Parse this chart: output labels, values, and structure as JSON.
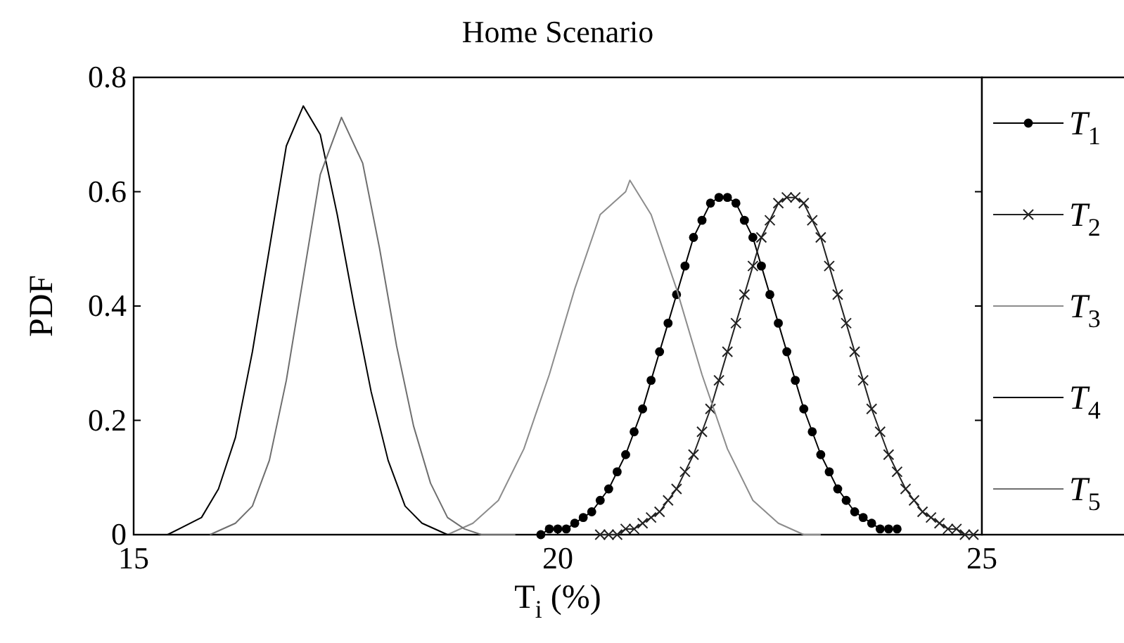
{
  "chart_data": {
    "type": "line",
    "title": "Home Scenario",
    "xlabel": "T$_{i}$  (%)",
    "ylabel": "PDF",
    "xlim": [
      15,
      25
    ],
    "ylim": [
      0,
      0.8
    ],
    "xticks": [
      15,
      20,
      25
    ],
    "yticks": [
      0,
      0.2,
      0.4,
      0.6,
      0.8
    ],
    "legend": "right",
    "grid": false,
    "series": [
      {
        "name": "T$_{1}$",
        "color": "#000000",
        "marker": "circle",
        "x": [
          19.8,
          19.9,
          20.0,
          20.1,
          20.2,
          20.3,
          20.4,
          20.5,
          20.6,
          20.7,
          20.8,
          20.9,
          21.0,
          21.1,
          21.2,
          21.3,
          21.4,
          21.5,
          21.6,
          21.7,
          21.8,
          21.9,
          22.0,
          22.1,
          22.2,
          22.3,
          22.4,
          22.5,
          22.6,
          22.7,
          22.8,
          22.9,
          23.0,
          23.1,
          23.2,
          23.3,
          23.4,
          23.5,
          23.6,
          23.7,
          23.8,
          23.9,
          24.0
        ],
        "values": [
          0,
          0.01,
          0.01,
          0.01,
          0.02,
          0.03,
          0.04,
          0.06,
          0.08,
          0.11,
          0.14,
          0.18,
          0.22,
          0.27,
          0.32,
          0.37,
          0.42,
          0.47,
          0.52,
          0.55,
          0.58,
          0.59,
          0.59,
          0.58,
          0.55,
          0.52,
          0.47,
          0.42,
          0.37,
          0.32,
          0.27,
          0.22,
          0.18,
          0.14,
          0.11,
          0.08,
          0.06,
          0.04,
          0.03,
          0.02,
          0.01,
          0.01,
          0.01
        ]
      },
      {
        "name": "T$_{2}$",
        "color": "#222222",
        "marker": "cross",
        "x": [
          20.5,
          20.6,
          20.7,
          20.8,
          20.9,
          21.0,
          21.1,
          21.2,
          21.3,
          21.4,
          21.5,
          21.6,
          21.7,
          21.8,
          21.9,
          22.0,
          22.1,
          22.2,
          22.3,
          22.4,
          22.5,
          22.6,
          22.7,
          22.8,
          22.9,
          23.0,
          23.1,
          23.2,
          23.3,
          23.4,
          23.5,
          23.6,
          23.7,
          23.8,
          23.9,
          24.0,
          24.1,
          24.2,
          24.3,
          24.4,
          24.5,
          24.6,
          24.7,
          24.8,
          24.9
        ],
        "values": [
          0,
          0,
          0,
          0.01,
          0.01,
          0.02,
          0.03,
          0.04,
          0.06,
          0.08,
          0.11,
          0.14,
          0.18,
          0.22,
          0.27,
          0.32,
          0.37,
          0.42,
          0.47,
          0.52,
          0.55,
          0.58,
          0.59,
          0.59,
          0.58,
          0.55,
          0.52,
          0.47,
          0.42,
          0.37,
          0.32,
          0.27,
          0.22,
          0.18,
          0.14,
          0.11,
          0.08,
          0.06,
          0.04,
          0.03,
          0.02,
          0.01,
          0.01,
          0,
          0
        ]
      },
      {
        "name": "T$_{3}$",
        "color": "#8c8c8c",
        "marker": "none",
        "x": [
          18.7,
          19.0,
          19.3,
          19.6,
          19.9,
          20.2,
          20.5,
          20.8,
          20.85,
          21.1,
          21.4,
          21.7,
          22.0,
          22.3,
          22.6,
          22.9,
          23.1
        ],
        "values": [
          0,
          0.02,
          0.06,
          0.15,
          0.28,
          0.43,
          0.56,
          0.6,
          0.62,
          0.56,
          0.43,
          0.28,
          0.15,
          0.06,
          0.02,
          0,
          0
        ]
      },
      {
        "name": "T$_{4}$",
        "color": "#000000",
        "marker": "none",
        "x": [
          15.4,
          15.8,
          16.0,
          16.2,
          16.4,
          16.6,
          16.8,
          17.0,
          17.2,
          17.4,
          17.6,
          17.8,
          18.0,
          18.2,
          18.4,
          18.7,
          19.0
        ],
        "values": [
          0,
          0.03,
          0.08,
          0.17,
          0.32,
          0.5,
          0.68,
          0.75,
          0.7,
          0.56,
          0.4,
          0.25,
          0.13,
          0.05,
          0.02,
          0,
          0
        ]
      },
      {
        "name": "T$_{5}$",
        "color": "#6e6e6e",
        "marker": "none",
        "x": [
          15.9,
          16.2,
          16.4,
          16.6,
          16.8,
          17.0,
          17.2,
          17.45,
          17.7,
          17.9,
          18.1,
          18.3,
          18.5,
          18.7,
          18.9,
          19.1,
          19.5
        ],
        "values": [
          0,
          0.02,
          0.05,
          0.13,
          0.27,
          0.45,
          0.63,
          0.73,
          0.65,
          0.5,
          0.33,
          0.19,
          0.09,
          0.03,
          0.01,
          0,
          0
        ]
      }
    ]
  }
}
